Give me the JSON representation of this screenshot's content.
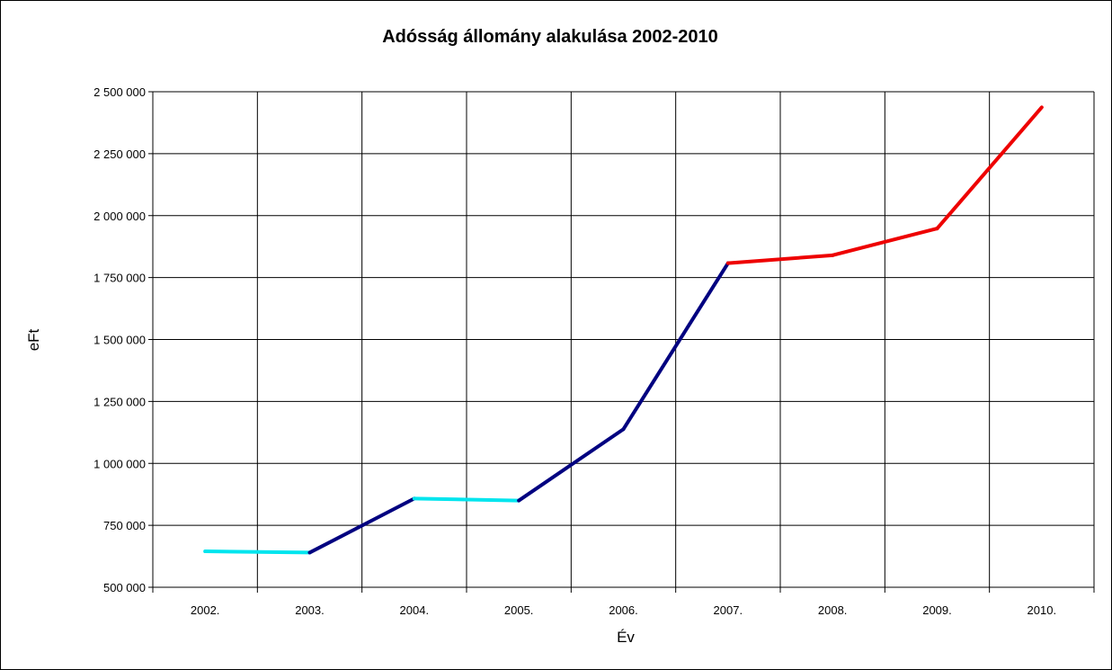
{
  "chart_data": {
    "type": "line",
    "title": "Adósság állomány alakulása 2002-2010",
    "xlabel": "Év",
    "ylabel": "eFt",
    "categories": [
      "2002.",
      "2003.",
      "2004.",
      "2005.",
      "2006.",
      "2007.",
      "2008.",
      "2009.",
      "2010."
    ],
    "ylim": [
      500000,
      2500000
    ],
    "yticks": [
      500000,
      750000,
      1000000,
      1250000,
      1500000,
      1750000,
      2000000,
      2250000,
      2500000
    ],
    "ytick_labels": [
      "500 000",
      "750 000",
      "1 000 000",
      "1 250 000",
      "1 500 000",
      "1 750 000",
      "2 000 000",
      "2 250 000",
      "2 500 000"
    ],
    "values": [
      645000,
      640000,
      858000,
      850000,
      1138000,
      1808000,
      1840000,
      1948000,
      2437000
    ],
    "segment_colors": [
      "#00e5ee",
      "#000080",
      "#00e5ee",
      "#000080",
      "#000080",
      "#ee0000",
      "#ee0000",
      "#ee0000"
    ],
    "grid": true,
    "legend": "none"
  }
}
